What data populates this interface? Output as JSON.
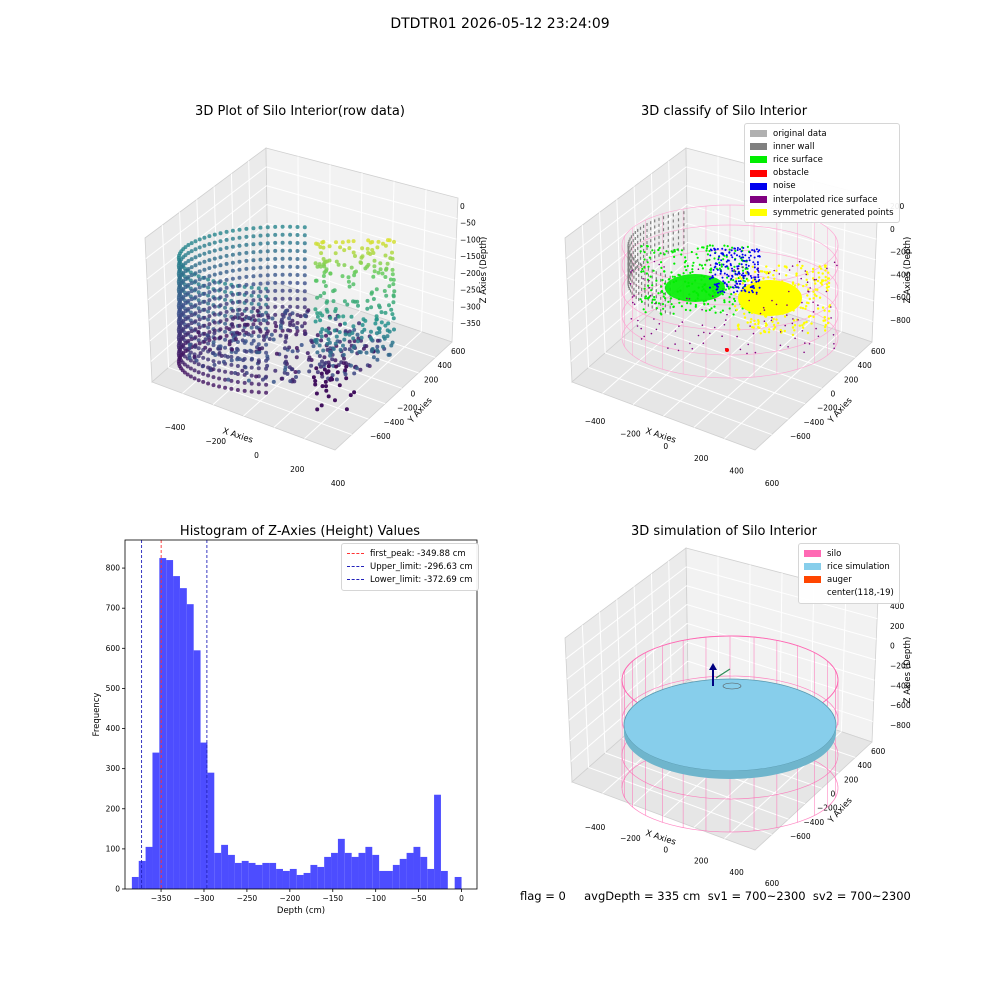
{
  "figure": {
    "suptitle": "DTDTR01 2026-05-12 23:24:09",
    "footer": "flag = 0     avgDepth = 335 cm  sv1 = 700~2300  sv2 = 700~2300"
  },
  "chart_data": [
    {
      "type": "scatter",
      "subtype": "3d",
      "title": "3D Plot of Silo Interior(row data)",
      "xlabel": "X Axies",
      "ylabel": "Y Axies",
      "zlabel": "Z Axies (Depth)",
      "x_ticks": [
        "−400",
        "−200",
        "0",
        "200",
        "400"
      ],
      "y_ticks": [
        "−600",
        "−400",
        "−200",
        "0",
        "200",
        "400",
        "600"
      ],
      "z_ticks": [
        "0",
        "−50",
        "−100",
        "−150",
        "−200",
        "−250",
        "−300",
        "−350"
      ],
      "colormap": "viridis",
      "grid": true
    },
    {
      "type": "scatter",
      "subtype": "3d",
      "title": "3D classify of Silo Interior",
      "xlabel": "X Axies",
      "ylabel": "Y Axies",
      "zlabel": "Z Axies (Depth)",
      "x_ticks": [
        "−400",
        "−200",
        "0",
        "200",
        "400",
        "600"
      ],
      "y_ticks": [
        "−600",
        "−400",
        "−200",
        "0",
        "200",
        "400",
        "600"
      ],
      "z_ticks": [
        "200",
        "0",
        "−200",
        "−400",
        "−600",
        "−800"
      ],
      "legend": {
        "placement": "top-right",
        "entries": [
          {
            "label": "original data",
            "color": "#b0b0b0"
          },
          {
            "label": "inner wall",
            "color": "#808080"
          },
          {
            "label": "rice surface",
            "color": "#00ee00"
          },
          {
            "label": "obstacle",
            "color": "#ff0000"
          },
          {
            "label": "noise",
            "color": "#0000ee"
          },
          {
            "label": "interpolated rice surface",
            "color": "#800080"
          },
          {
            "label": "symmetric generated points",
            "color": "#ffff00"
          }
        ]
      },
      "grid": true
    },
    {
      "type": "bar",
      "subtype": "histogram",
      "title": "Histogram of Z-Axies (Height) Values",
      "xlabel": "Depth (cm)",
      "ylabel": "Frequency",
      "xlim": [
        -392,
        18
      ],
      "ylim": [
        0,
        870
      ],
      "x_ticks": [
        -350,
        -300,
        -250,
        -200,
        -150,
        -100,
        -50,
        0
      ],
      "x_tick_labels": [
        "−350",
        "−300",
        "−250",
        "−200",
        "−150",
        "−100",
        "−50",
        "0"
      ],
      "y_ticks": [
        0,
        100,
        200,
        300,
        400,
        500,
        600,
        700,
        800
      ],
      "bin_width": 8,
      "bins": [
        {
          "x0": -384,
          "count": 30
        },
        {
          "x0": -376,
          "count": 70
        },
        {
          "x0": -368,
          "count": 105
        },
        {
          "x0": -360,
          "count": 340
        },
        {
          "x0": -352,
          "count": 825
        },
        {
          "x0": -344,
          "count": 820
        },
        {
          "x0": -336,
          "count": 780
        },
        {
          "x0": -328,
          "count": 750
        },
        {
          "x0": -320,
          "count": 710
        },
        {
          "x0": -312,
          "count": 595
        },
        {
          "x0": -304,
          "count": 365
        },
        {
          "x0": -296,
          "count": 290
        },
        {
          "x0": -288,
          "count": 90
        },
        {
          "x0": -280,
          "count": 110
        },
        {
          "x0": -272,
          "count": 85
        },
        {
          "x0": -264,
          "count": 65
        },
        {
          "x0": -256,
          "count": 70
        },
        {
          "x0": -248,
          "count": 65
        },
        {
          "x0": -240,
          "count": 60
        },
        {
          "x0": -232,
          "count": 65
        },
        {
          "x0": -224,
          "count": 65
        },
        {
          "x0": -216,
          "count": 50
        },
        {
          "x0": -208,
          "count": 45
        },
        {
          "x0": -200,
          "count": 50
        },
        {
          "x0": -192,
          "count": 35
        },
        {
          "x0": -184,
          "count": 40
        },
        {
          "x0": -176,
          "count": 60
        },
        {
          "x0": -168,
          "count": 55
        },
        {
          "x0": -160,
          "count": 80
        },
        {
          "x0": -152,
          "count": 90
        },
        {
          "x0": -144,
          "count": 125
        },
        {
          "x0": -136,
          "count": 90
        },
        {
          "x0": -128,
          "count": 80
        },
        {
          "x0": -120,
          "count": 90
        },
        {
          "x0": -112,
          "count": 105
        },
        {
          "x0": -104,
          "count": 85
        },
        {
          "x0": -96,
          "count": 45
        },
        {
          "x0": -88,
          "count": 45
        },
        {
          "x0": -80,
          "count": 60
        },
        {
          "x0": -72,
          "count": 75
        },
        {
          "x0": -64,
          "count": 90
        },
        {
          "x0": -56,
          "count": 105
        },
        {
          "x0": -48,
          "count": 80
        },
        {
          "x0": -40,
          "count": 50
        },
        {
          "x0": -32,
          "count": 235
        },
        {
          "x0": -24,
          "count": 45
        },
        {
          "x0": -8,
          "count": 30
        }
      ],
      "bar_color": "#4d4dff",
      "vlines": [
        {
          "x": -349.88,
          "color": "#ff3333",
          "label": "first_peak: -349.88 cm"
        },
        {
          "x": -296.63,
          "color": "#2222bb",
          "label": "Upper_limit: -296.63 cm"
        },
        {
          "x": -372.69,
          "color": "#2222bb",
          "label": "Lower_limit: -372.69 cm"
        }
      ],
      "legend": {
        "placement": "top-right"
      }
    },
    {
      "type": "scatter",
      "subtype": "3d",
      "title": "3D simulation of Silo Interior",
      "xlabel": "X Axies",
      "ylabel": "Y Axies",
      "zlabel": "Z Axies (Depth)",
      "x_ticks": [
        "−400",
        "−200",
        "0",
        "200",
        "400",
        "600"
      ],
      "y_ticks": [
        "−600",
        "−400",
        "−200",
        "0",
        "200",
        "400",
        "600"
      ],
      "z_ticks": [
        "400",
        "200",
        "0",
        "−200",
        "−400",
        "−600",
        "−800"
      ],
      "legend": {
        "placement": "top-right",
        "entries": [
          {
            "label": "silo",
            "color": "#ff69b4"
          },
          {
            "label": "rice simulation",
            "color": "#87ceeb"
          },
          {
            "label": "auger",
            "color": "#ff4500"
          },
          {
            "label": "center(118,-19)",
            "color": ""
          }
        ]
      },
      "grid": true
    }
  ]
}
